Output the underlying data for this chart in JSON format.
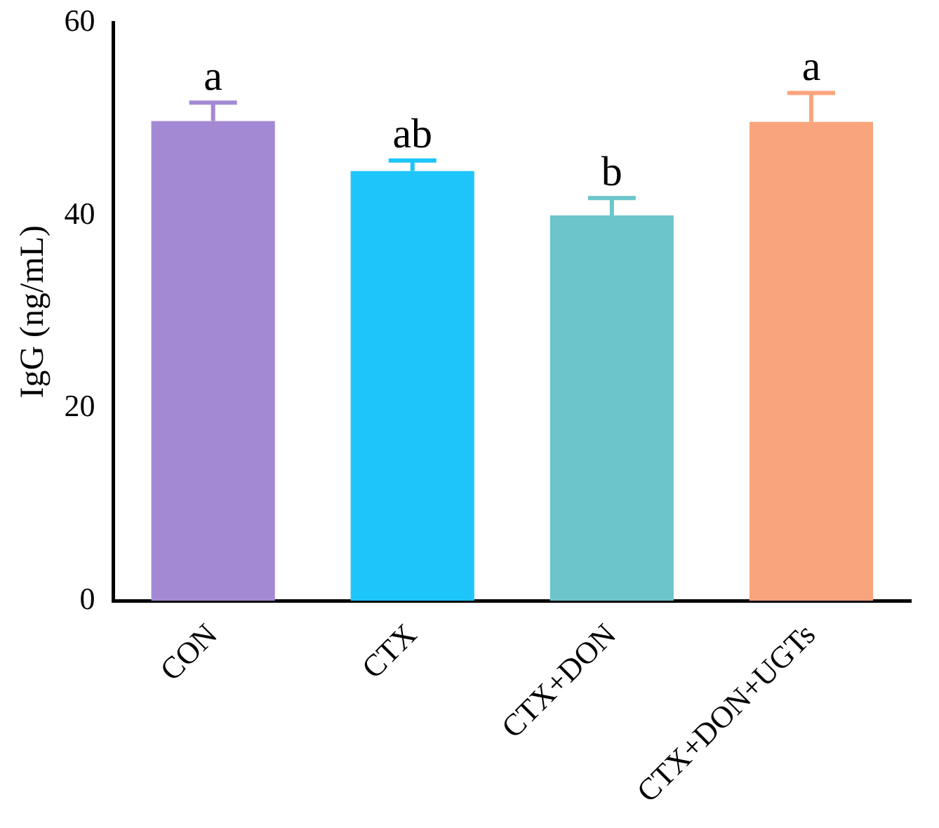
{
  "chart_data": {
    "type": "bar",
    "ylabel": "IgG (ng/mL)",
    "categories": [
      "CON",
      "CTX",
      "CTX+DON",
      "CTX+DON+UGTs"
    ],
    "values": [
      49.8,
      44.6,
      40.0,
      49.7
    ],
    "errors": [
      1.9,
      1.1,
      1.8,
      3.0
    ],
    "colors": [
      "#a389d4",
      "#1ec5fb",
      "#6cc5cb",
      "#f9a47c"
    ],
    "ylim": [
      0,
      60
    ],
    "yticks": [
      0,
      20,
      40,
      60
    ],
    "grid": false,
    "legend": false,
    "annotations": [
      {
        "text": "a",
        "x": "CON",
        "y": 51.7
      },
      {
        "text": "ab",
        "x": "CTX",
        "y": 45.7
      },
      {
        "text": "b",
        "x": "CTX+DON",
        "y": 41.8
      },
      {
        "text": "a",
        "x": "CTX+DON+UGTs",
        "y": 52.7
      }
    ]
  }
}
